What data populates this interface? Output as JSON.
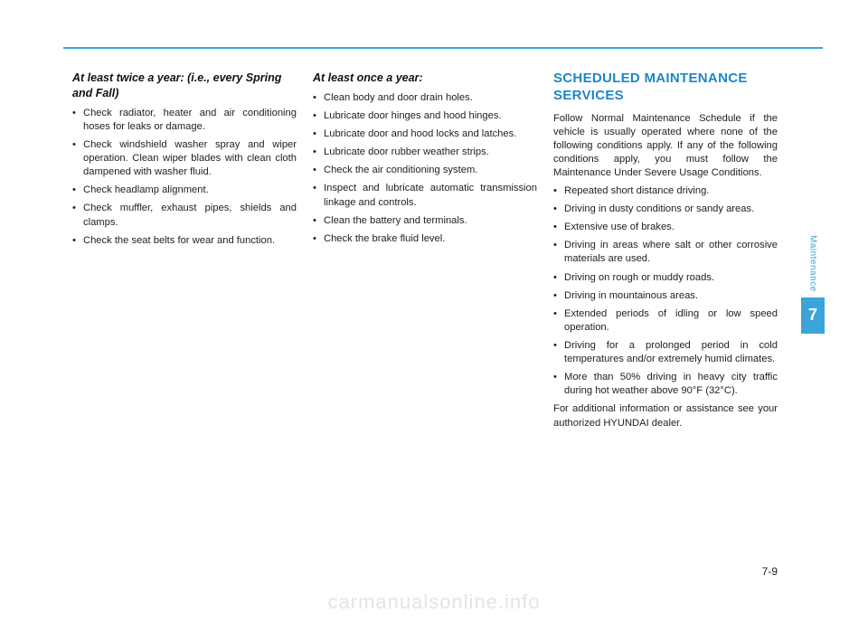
{
  "colors": {
    "accent": "#3ba4d8",
    "text": "#222222",
    "heading": "#1f86c5",
    "watermark": "#e4e4e4",
    "bg": "#ffffff"
  },
  "col1": {
    "heading": "At least twice a year: (i.e., every Spring and Fall)",
    "items": [
      "Check radiator, heater and air conditioning hoses for leaks or damage.",
      "Check windshield washer spray and wiper operation. Clean wiper blades with clean cloth dampened with washer fluid.",
      "Check headlamp alignment.",
      "Check muffler, exhaust pipes, shields and clamps.",
      "Check the seat belts for wear and function."
    ]
  },
  "col2": {
    "heading": "At least once a year:",
    "items": [
      "Clean body and door drain holes.",
      "Lubricate door hinges and hood hinges.",
      "Lubricate door and hood locks and latches.",
      "Lubricate door rubber weather strips.",
      "Check the air conditioning system.",
      "Inspect and lubricate automatic transmission linkage and controls.",
      "Clean the battery and terminals.",
      "Check the brake fluid level."
    ]
  },
  "col3": {
    "title": "SCHEDULED MAINTENANCE SERVICES",
    "intro": "Follow Normal Maintenance Schedule if the vehicle is usually operated where none of the following conditions apply. If any of the following conditions apply, you must follow the Maintenance Under Severe Usage Conditions.",
    "items": [
      "Repeated short distance driving.",
      "Driving in dusty conditions or sandy areas.",
      "Extensive use of brakes.",
      "Driving in areas where salt or other corrosive materials are used.",
      "Driving on rough or muddy roads.",
      "Driving in mountainous areas.",
      "Extended periods of idling or low speed operation.",
      "Driving for a prolonged period in cold temperatures and/or extremely humid climates.",
      "More than 50% driving in heavy city traffic during hot weather above 90°F (32°C)."
    ],
    "outro": "For additional information or assistance see your authorized HYUNDAI dealer."
  },
  "side": {
    "label": "Maintenance",
    "chapter": "7"
  },
  "page_number": "7-9",
  "watermark": "carmanualsonline.info"
}
